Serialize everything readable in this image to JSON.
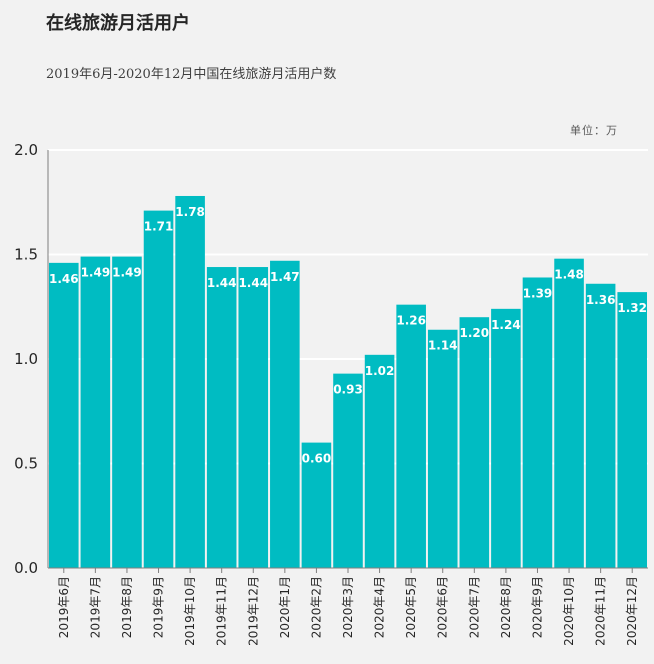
{
  "header": {
    "title": "在线旅游月活用户",
    "subtitle": "2019年6月-2020年12月中国在线旅游月活用户数",
    "unit": "单位：万"
  },
  "colors": {
    "bar": "#00bcc2",
    "gridline": "#ffffff",
    "background": "#f2f2f2"
  },
  "chart_data": {
    "type": "bar",
    "title": "在线旅游月活用户",
    "subtitle": "2019年6月-2020年12月中国在线旅游月活用户数",
    "categories": [
      "2019年6月",
      "2019年7月",
      "2019年8月",
      "2019年9月",
      "2019年10月",
      "2019年11月",
      "2019年12月",
      "2020年1月",
      "2020年2月",
      "2020年3月",
      "2020年4月",
      "2020年5月",
      "2020年6月",
      "2020年7月",
      "2020年8月",
      "2020年9月",
      "2020年10月",
      "2020年11月",
      "2020年12月"
    ],
    "values": [
      1.46,
      1.49,
      1.49,
      1.71,
      1.78,
      1.44,
      1.44,
      1.47,
      0.6,
      0.93,
      1.02,
      1.26,
      1.14,
      1.2,
      1.24,
      1.39,
      1.48,
      1.36,
      1.32
    ],
    "data_labels": [
      "1.46",
      "1.49",
      "1.49",
      "1.71",
      "1.78",
      "1.44",
      "1.44",
      "1.47",
      "0.60",
      "0.93",
      "1.02",
      "1.26",
      "1.14",
      "1.20",
      "1.24",
      "1.39",
      "1.48",
      "1.36",
      "1.32"
    ],
    "y_ticks": [
      "0.0",
      "0.5",
      "1.0",
      "1.5",
      "2.0"
    ],
    "ylim": [
      0,
      2.0
    ],
    "unit": "单位：万",
    "grid": true,
    "legend": "none"
  }
}
